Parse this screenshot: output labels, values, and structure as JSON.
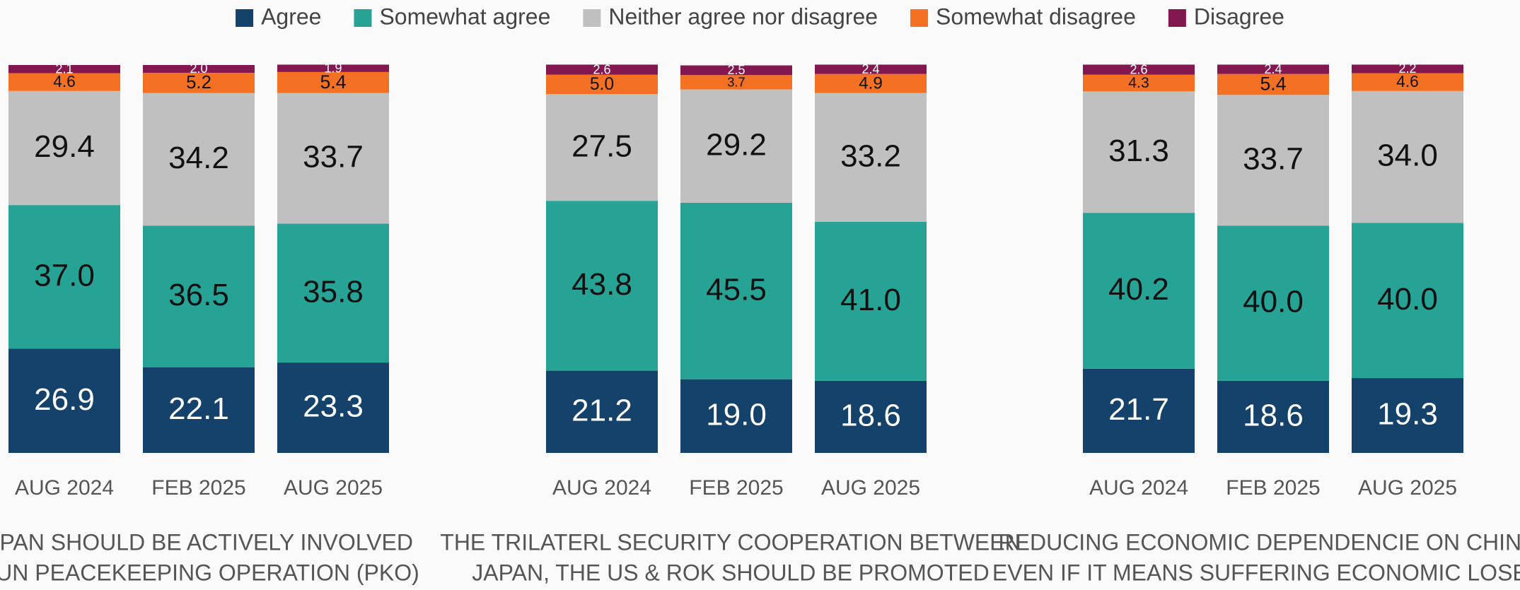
{
  "chart_data": [
    {
      "type": "stacked_bar",
      "title": [
        "JAPAN SHOULD BE ACTIVELY INVOLVED",
        "IN UN PEACEKEEPING OPERATION (PKO)"
      ],
      "categories": [
        "AUG 2024",
        "FEB 2025",
        "AUG 2025"
      ],
      "ylim": [
        0,
        100
      ],
      "series": [
        {
          "name": "Agree",
          "color": "#14426b",
          "values": [
            26.9,
            22.1,
            23.3
          ],
          "value_labels": [
            "26.9",
            "22.1",
            "23.3"
          ]
        },
        {
          "name": "Somewhat agree",
          "color": "#27a396",
          "values": [
            37.0,
            36.5,
            35.8
          ],
          "value_labels": [
            "37.0",
            "36.5",
            "35.8"
          ]
        },
        {
          "name": "Neither agree nor disagree",
          "color": "#c0c0c0",
          "values": [
            29.4,
            34.2,
            33.7
          ],
          "value_labels": [
            "29.4",
            "34.2",
            "33.7"
          ]
        },
        {
          "name": "Somewhat disagree",
          "color": "#f47022",
          "values": [
            4.6,
            5.2,
            5.4
          ],
          "value_labels": [
            "4.6",
            "5.2",
            "5.4"
          ]
        },
        {
          "name": "Disagree",
          "color": "#83174f",
          "values": [
            2.1,
            2.0,
            1.9
          ],
          "value_labels": [
            "2.1",
            "2.0",
            "1.9"
          ]
        }
      ]
    },
    {
      "type": "stacked_bar",
      "title": [
        "THE TRILATERL SECURITY COOPERATION BETWEEN",
        "JAPAN, THE US & ROK SHOULD BE PROMOTED"
      ],
      "categories": [
        "AUG 2024",
        "FEB 2025",
        "AUG 2025"
      ],
      "ylim": [
        0,
        100
      ],
      "series": [
        {
          "name": "Agree",
          "color": "#14426b",
          "values": [
            21.2,
            19.0,
            18.6
          ],
          "value_labels": [
            "21.2",
            "19.0",
            "18.6"
          ]
        },
        {
          "name": "Somewhat agree",
          "color": "#27a396",
          "values": [
            43.8,
            45.5,
            41.0
          ],
          "value_labels": [
            "43.8",
            "45.5",
            "41.0"
          ]
        },
        {
          "name": "Neither agree nor disagree",
          "color": "#c0c0c0",
          "values": [
            27.5,
            29.2,
            33.2
          ],
          "value_labels": [
            "27.5",
            "29.2",
            "33.2"
          ]
        },
        {
          "name": "Somewhat disagree",
          "color": "#f47022",
          "values": [
            5.0,
            3.7,
            4.9
          ],
          "value_labels": [
            "5.0",
            "3.7",
            "4.9"
          ]
        },
        {
          "name": "Disagree",
          "color": "#83174f",
          "values": [
            2.6,
            2.5,
            2.4
          ],
          "value_labels": [
            "2.6",
            "2.5",
            "2.4"
          ]
        }
      ]
    },
    {
      "type": "stacked_bar",
      "title": [
        "REDUCING ECONOMIC DEPENDENCIE ON CHINA",
        "EVEN IF IT MEANS SUFFERING ECONOMIC LOSES"
      ],
      "categories": [
        "AUG 2024",
        "FEB 2025",
        "AUG 2025"
      ],
      "ylim": [
        0,
        100
      ],
      "series": [
        {
          "name": "Agree",
          "color": "#14426b",
          "values": [
            21.7,
            18.6,
            19.3
          ],
          "value_labels": [
            "21.7",
            "18.6",
            "19.3"
          ]
        },
        {
          "name": "Somewhat agree",
          "color": "#27a396",
          "values": [
            40.2,
            40.0,
            40.0
          ],
          "value_labels": [
            "40.2",
            "40.0",
            "40.0"
          ]
        },
        {
          "name": "Neither agree nor disagree",
          "color": "#c0c0c0",
          "values": [
            31.3,
            33.7,
            34.0
          ],
          "value_labels": [
            "31.3",
            "33.7",
            "34.0"
          ]
        },
        {
          "name": "Somewhat disagree",
          "color": "#f47022",
          "values": [
            4.3,
            5.4,
            4.6
          ],
          "value_labels": [
            "4.3",
            "5.4",
            "4.6"
          ]
        },
        {
          "name": "Disagree",
          "color": "#83174f",
          "values": [
            2.6,
            2.4,
            2.2
          ],
          "value_labels": [
            "2.6",
            "2.4",
            "2.2"
          ]
        }
      ]
    }
  ]
}
